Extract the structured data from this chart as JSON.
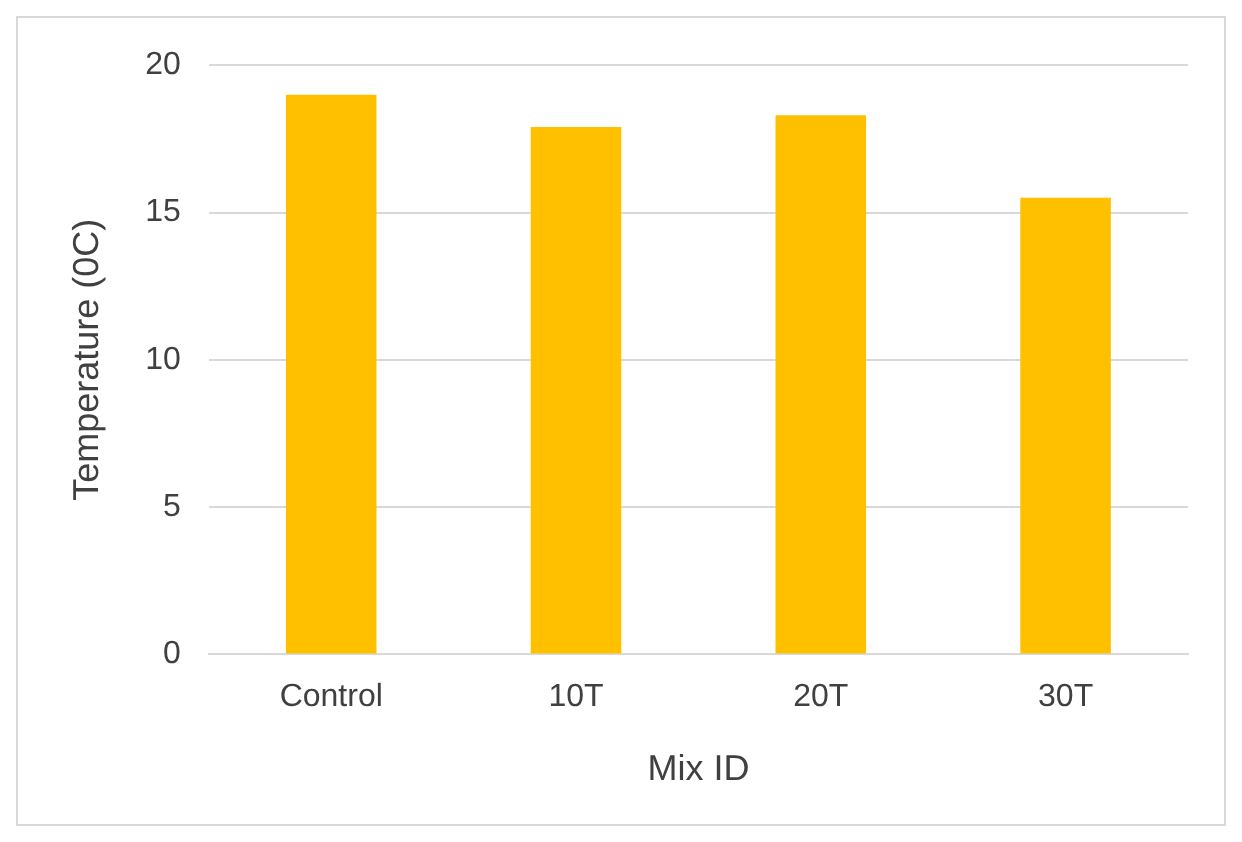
{
  "chart_data": {
    "type": "bar",
    "xlabel": "Mix ID",
    "ylabel": "Temperature (0C)",
    "categories": [
      "Control",
      "10T",
      "20T",
      "30T"
    ],
    "values": [
      19.0,
      17.9,
      18.3,
      15.5
    ],
    "color": "#ffc000",
    "ylim": [
      0,
      20
    ],
    "yticks": [
      0,
      5,
      10,
      15,
      20
    ],
    "grid": "y"
  }
}
